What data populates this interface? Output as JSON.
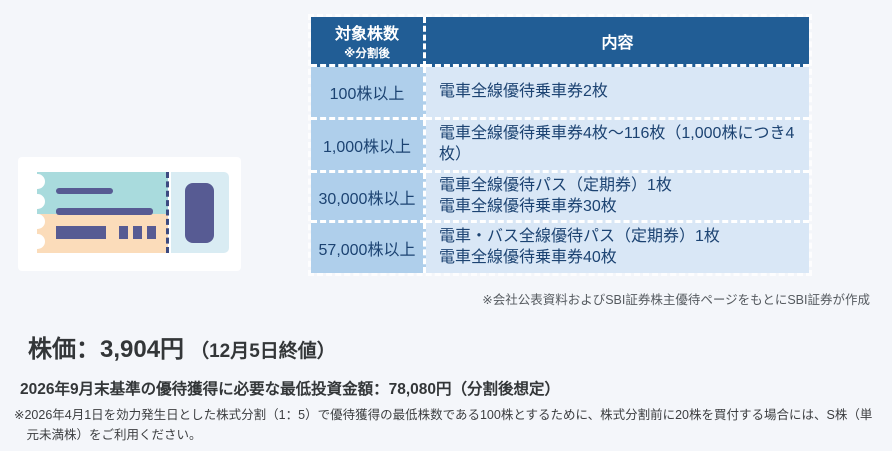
{
  "colors": {
    "page_background": "#f4f6fa",
    "table_header_bg": "#215d95",
    "table_shares_cell_bg": "#afcfeb",
    "table_benefit_cell_bg": "#d9e7f6",
    "table_text_navy": "#1c4372",
    "ticket_teal": "#a9dbdd",
    "ticket_peach": "#fbdcba",
    "ticket_stub_blue": "#d9ecf3",
    "ticket_purple": "#575b93"
  },
  "ticket_card": {
    "icon": "ticket-icon"
  },
  "table": {
    "header": {
      "col1_line1": "対象株数",
      "col1_line2": "※分割後",
      "col2": "内容"
    },
    "rows": [
      {
        "shares": "100株以上",
        "benefit_lines": [
          "電車全線優待乗車券2枚"
        ]
      },
      {
        "shares": "1,000株以上",
        "benefit_lines": [
          "電車全線優待乗車券4枚～116枚（1,000株につき4枚）"
        ]
      },
      {
        "shares": "30,000株以上",
        "benefit_lines": [
          "電車全線優待パス（定期券）1枚",
          "電車全線優待乗車券30枚"
        ]
      },
      {
        "shares": "57,000株以上",
        "benefit_lines": [
          "電車・バス全線優待パス（定期券）1枚",
          "電車全線優待乗車券40枚"
        ]
      }
    ],
    "source_note": "※会社公表資料およびSBI証券株主優待ページをもとにSBI証券が作成"
  },
  "stock": {
    "price_main": "株価：3,904円",
    "price_note": "（12月5日終値）",
    "min_investment": "2026年9月末基準の優待獲得に必要な最低投資金額：78,080円（分割後想定）",
    "disclaimer": "※2026年4月1日を効力発生日とした株式分割（1：5）で優待獲得の最低株数である100株とするために、株式分割前に20株を買付する場合には、S株（単元未満株）をご利用ください。"
  }
}
